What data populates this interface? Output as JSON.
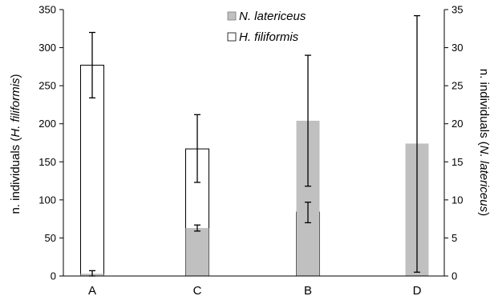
{
  "chart_data": {
    "type": "bar",
    "categories": [
      "A",
      "C",
      "B",
      "D"
    ],
    "series": [
      {
        "name": "N. latericeus",
        "axis": "right",
        "color": "#c0c0c0",
        "values": [
          0.3,
          6.3,
          20.4,
          17.4
        ],
        "error_low": [
          0.0,
          5.9,
          11.8,
          0.5
        ],
        "error_high": [
          0.7,
          6.7,
          29.0,
          34.2
        ]
      },
      {
        "name": "H. filiformis",
        "axis": "left",
        "color": "#ffffff",
        "values": [
          277,
          167,
          84,
          0
        ],
        "error_low": [
          234,
          123,
          70,
          null
        ],
        "error_high": [
          320,
          212,
          97,
          null
        ]
      }
    ],
    "y_left": {
      "ylim": [
        0,
        350
      ],
      "ticks": [
        "0",
        "50",
        "100",
        "150",
        "200",
        "250",
        "300",
        "350"
      ],
      "label_prefix": "n. individuals (",
      "label_species": "H. filiformis",
      "label_suffix": ")"
    },
    "y_right": {
      "ylim": [
        0,
        35
      ],
      "ticks": [
        "0",
        "5",
        "10",
        "15",
        "20",
        "25",
        "30",
        "35"
      ],
      "label_prefix": "n. individuals (",
      "label_species": "N. latericeus",
      "label_suffix": ")"
    },
    "legend": {
      "placement": "top-center",
      "entries": [
        "N. latericeus",
        "H. filiformis"
      ]
    },
    "grid": false
  }
}
